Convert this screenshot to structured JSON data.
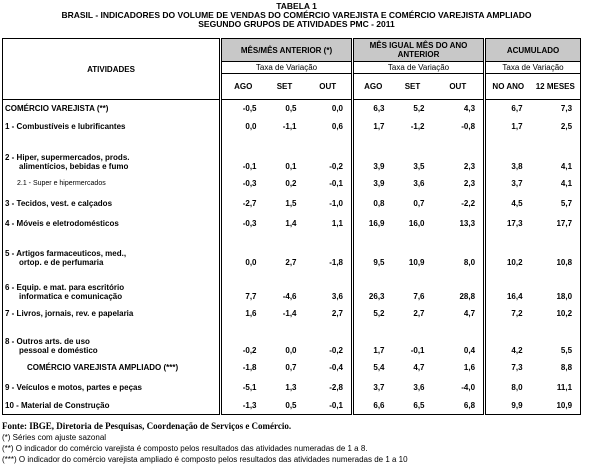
{
  "header": {
    "table_number": "TABELA 1",
    "title_lines": [
      "BRASIL - INDICADORES DO VOLUME DE VENDAS DO COMÉRCIO VAREJISTA E COMÉRCIO VAREJISTA AMPLIADO",
      "SEGUNDO GRUPOS DE ATIVIDADES PMC - 2011"
    ]
  },
  "table": {
    "activities_label": "ATIVIDADES",
    "groups": [
      {
        "label": "MÊS/MÊS ANTERIOR (*)",
        "sublabel": "Taxa de Variação",
        "columns": [
          "AGO",
          "SET",
          "OUT"
        ]
      },
      {
        "label": "MÊS IGUAL MÊS DO ANO ANTERIOR",
        "sublabel": "Taxa de Variação",
        "columns": [
          "AGO",
          "SET",
          "OUT"
        ]
      },
      {
        "label": "ACUMULADO",
        "sublabel": "Taxa de Variação",
        "columns": [
          "NO ANO",
          "12 MESES"
        ]
      }
    ],
    "rows": [
      {
        "label": [
          "COMÉRCIO VAREJISTA (**)"
        ],
        "values": [
          "-0,5",
          "0,5",
          "0,0",
          "6,3",
          "5,2",
          "4,3",
          "6,7",
          "7,3"
        ]
      },
      {
        "label": [
          "1 - Combustíveis e lubrificantes"
        ],
        "values": [
          "0,0",
          "-1,1",
          "0,6",
          "1,7",
          "-1,2",
          "-0,8",
          "1,7",
          "2,5"
        ]
      },
      {
        "label": [
          "2 - Hiper, supermercados, prods.",
          "alimentícios, bebidas e fumo"
        ],
        "values": [
          "-0,1",
          "0,1",
          "-0,2",
          "3,9",
          "3,5",
          "2,3",
          "3,8",
          "4,1"
        ]
      },
      {
        "label": [
          "2.1 - Super e hipermercados"
        ],
        "values": [
          "-0,3",
          "0,2",
          "-0,1",
          "3,9",
          "3,6",
          "2,3",
          "3,7",
          "4,1"
        ]
      },
      {
        "label": [
          "3 - Tecidos, vest. e calçados"
        ],
        "values": [
          "-2,7",
          "1,5",
          "-1,0",
          "0,8",
          "0,7",
          "-2,2",
          "4,5",
          "5,7"
        ]
      },
      {
        "label": [
          "4 - Móveis e eletrodomésticos"
        ],
        "values": [
          "-0,3",
          "1,4",
          "1,1",
          "16,9",
          "16,0",
          "13,3",
          "17,3",
          "17,7"
        ]
      },
      {
        "label": [
          "5 - Artigos farmaceuticos, med.,",
          "ortop. e de perfumaria"
        ],
        "values": [
          "0,0",
          "2,7",
          "-1,8",
          "9,5",
          "10,9",
          "8,0",
          "10,2",
          "10,8"
        ]
      },
      {
        "label": [
          "6 - Equip. e mat. para escritório",
          "informatica e comunicação"
        ],
        "values": [
          "7,7",
          "-4,6",
          "3,6",
          "26,3",
          "7,6",
          "28,8",
          "16,4",
          "18,0"
        ]
      },
      {
        "label": [
          "7 - Livros, jornais, rev. e papelaria"
        ],
        "values": [
          "1,6",
          "-1,4",
          "2,7",
          "5,2",
          "2,7",
          "4,7",
          "7,2",
          "10,2"
        ]
      },
      {
        "label": [
          "8 - Outros arts. de uso",
          "pessoal e doméstico"
        ],
        "values": [
          "-0,2",
          "0,0",
          "-0,2",
          "1,7",
          "-0,1",
          "0,4",
          "4,2",
          "5,5"
        ]
      },
      {
        "label": [
          "COMÉRCIO VAREJISTA AMPLIADO (***)"
        ],
        "values": [
          "-1,8",
          "0,7",
          "-0,4",
          "5,4",
          "4,7",
          "1,6",
          "7,3",
          "8,8"
        ]
      },
      {
        "label": [
          "9 - Veículos e motos, partes e peças"
        ],
        "values": [
          "-5,1",
          "1,3",
          "-2,8",
          "3,7",
          "3,6",
          "-4,0",
          "8,0",
          "11,1"
        ]
      },
      {
        "label": [
          "10 - Material de Construção"
        ],
        "values": [
          "-1,3",
          "0,5",
          "-0,1",
          "6,6",
          "6,5",
          "6,8",
          "9,9",
          "10,9"
        ]
      }
    ]
  },
  "footnotes": {
    "source": "Fonte: IBGE, Diretoria de Pesquisas, Coordenação de Serviços e Comércio.",
    "notes": [
      "(*) Séries com ajuste sazonal",
      "(**) O indicador do comércio varejista é composto pelos resultados das atividades numeradas de 1 a 8.",
      "(***) O indicador do comércio varejista ampliado é composto pelos resultados das atividades numeradas de 1 a 10"
    ]
  }
}
